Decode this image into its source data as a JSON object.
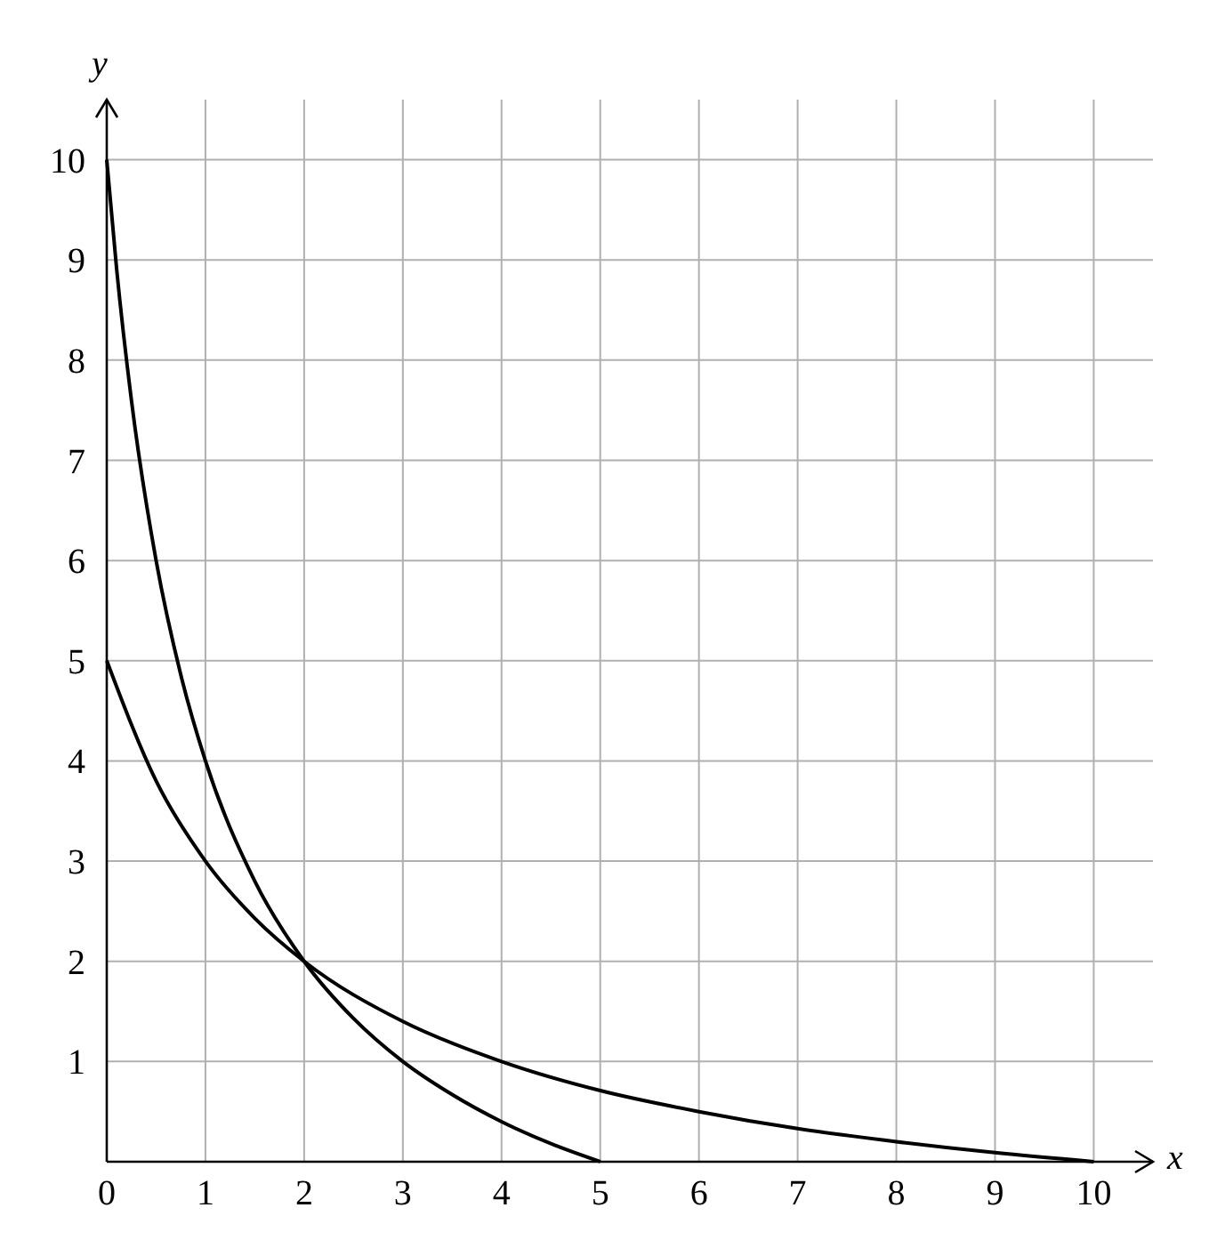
{
  "chart_data": {
    "type": "line",
    "xlabel": "x",
    "ylabel": "y",
    "xlim": [
      0,
      10.6
    ],
    "ylim": [
      0,
      10.6
    ],
    "xticks": [
      0,
      1,
      2,
      3,
      4,
      5,
      6,
      7,
      8,
      9,
      10
    ],
    "yticks": [
      1,
      2,
      3,
      4,
      5,
      6,
      7,
      8,
      9,
      10
    ],
    "grid": true,
    "marker": "none",
    "line_style": "solid",
    "series": [
      {
        "color": "#000000",
        "x": [
          0,
          0.1,
          0.25,
          0.5,
          0.75,
          1,
          1.5,
          2,
          2.5,
          3,
          3.5,
          4,
          4.5,
          5
        ],
        "values": [
          10,
          8.91,
          7.6,
          6,
          4.86,
          4,
          2.8,
          2,
          1.43,
          1,
          0.67,
          0.4,
          0.18,
          0
        ]
      },
      {
        "color": "#000000",
        "x": [
          0,
          0.5,
          1,
          1.5,
          2,
          3,
          4,
          5,
          6,
          7,
          8,
          9,
          10
        ],
        "values": [
          5,
          3.8,
          3,
          2.43,
          2,
          1.4,
          1,
          0.71,
          0.5,
          0.33,
          0.2,
          0.09,
          0
        ]
      }
    ]
  }
}
